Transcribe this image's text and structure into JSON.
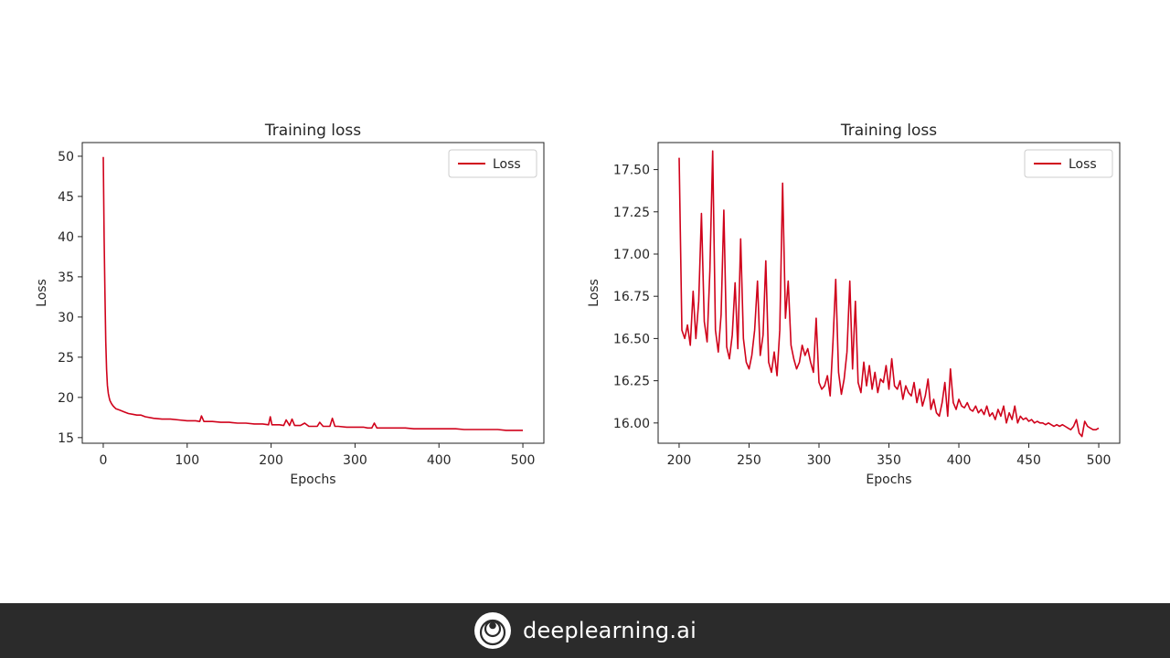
{
  "chart_data": [
    {
      "type": "line",
      "title": "Training loss",
      "xlabel": "Epochs",
      "ylabel": "Loss",
      "xlim": [
        -25,
        525
      ],
      "ylim": [
        14.3,
        51.7
      ],
      "xticks": [
        0,
        100,
        200,
        300,
        400,
        500
      ],
      "yticks": [
        15,
        20,
        25,
        30,
        35,
        40,
        45,
        50
      ],
      "grid": false,
      "legend": {
        "position": "top-right",
        "entries": [
          "Loss"
        ]
      },
      "color": "#d0021b",
      "series": [
        {
          "name": "Loss",
          "x": [
            0,
            1,
            2,
            3,
            4,
            5,
            6,
            7,
            8,
            10,
            12,
            15,
            20,
            25,
            30,
            35,
            40,
            45,
            50,
            60,
            70,
            80,
            90,
            100,
            110,
            115,
            117,
            120,
            130,
            140,
            150,
            160,
            170,
            180,
            190,
            197,
            199,
            201,
            205,
            210,
            215,
            218,
            222,
            225,
            228,
            235,
            240,
            245,
            250,
            255,
            258,
            262,
            265,
            270,
            273,
            276,
            280,
            290,
            300,
            305,
            310,
            315,
            320,
            323,
            326,
            330,
            340,
            350,
            360,
            370,
            380,
            390,
            400,
            410,
            420,
            430,
            440,
            450,
            460,
            470,
            480,
            490,
            500
          ],
          "values": [
            49.9,
            40.0,
            33.0,
            27.0,
            23.5,
            21.5,
            20.5,
            20.0,
            19.6,
            19.2,
            18.9,
            18.6,
            18.4,
            18.2,
            18.0,
            17.9,
            17.8,
            17.8,
            17.6,
            17.4,
            17.3,
            17.3,
            17.2,
            17.1,
            17.1,
            17.0,
            17.7,
            17.0,
            17.0,
            16.9,
            16.9,
            16.8,
            16.8,
            16.7,
            16.7,
            16.6,
            17.6,
            16.6,
            16.6,
            16.6,
            16.5,
            17.2,
            16.5,
            17.3,
            16.5,
            16.5,
            16.8,
            16.4,
            16.4,
            16.4,
            16.9,
            16.4,
            16.4,
            16.4,
            17.4,
            16.4,
            16.4,
            16.3,
            16.3,
            16.3,
            16.3,
            16.2,
            16.2,
            16.8,
            16.2,
            16.2,
            16.2,
            16.2,
            16.2,
            16.1,
            16.1,
            16.1,
            16.1,
            16.1,
            16.1,
            16.0,
            16.0,
            16.0,
            16.0,
            16.0,
            15.9,
            15.9,
            15.9
          ]
        }
      ]
    },
    {
      "type": "line",
      "title": "Training loss",
      "xlabel": "Epochs",
      "ylabel": "Loss",
      "xlim": [
        185,
        515
      ],
      "ylim": [
        15.88,
        17.66
      ],
      "xticks": [
        200,
        250,
        300,
        350,
        400,
        450,
        500
      ],
      "yticks": [
        16.0,
        16.25,
        16.5,
        16.75,
        17.0,
        17.25,
        17.5
      ],
      "grid": false,
      "legend": {
        "position": "top-right",
        "entries": [
          "Loss"
        ]
      },
      "color": "#d0021b",
      "series": [
        {
          "name": "Loss",
          "x": [
            200,
            202,
            204,
            206,
            208,
            210,
            212,
            214,
            216,
            218,
            220,
            222,
            224,
            226,
            228,
            230,
            232,
            234,
            236,
            238,
            240,
            242,
            244,
            246,
            248,
            250,
            252,
            254,
            256,
            258,
            260,
            262,
            264,
            266,
            268,
            270,
            272,
            274,
            276,
            278,
            280,
            282,
            284,
            286,
            288,
            290,
            292,
            294,
            296,
            298,
            300,
            302,
            304,
            306,
            308,
            310,
            312,
            314,
            316,
            318,
            320,
            322,
            324,
            326,
            328,
            330,
            332,
            334,
            336,
            338,
            340,
            342,
            344,
            346,
            348,
            350,
            352,
            354,
            356,
            358,
            360,
            362,
            364,
            366,
            368,
            370,
            372,
            374,
            376,
            378,
            380,
            382,
            384,
            386,
            388,
            390,
            392,
            394,
            396,
            398,
            400,
            402,
            404,
            406,
            408,
            410,
            412,
            414,
            416,
            418,
            420,
            422,
            424,
            426,
            428,
            430,
            432,
            434,
            436,
            438,
            440,
            442,
            444,
            446,
            448,
            450,
            452,
            454,
            456,
            458,
            460,
            462,
            464,
            466,
            468,
            470,
            472,
            474,
            476,
            478,
            480,
            482,
            484,
            486,
            488,
            490,
            492,
            494,
            496,
            498,
            500
          ],
          "values": [
            17.57,
            16.55,
            16.5,
            16.58,
            16.46,
            16.78,
            16.5,
            16.72,
            17.24,
            16.6,
            16.48,
            16.9,
            17.61,
            16.55,
            16.42,
            16.64,
            17.26,
            16.45,
            16.38,
            16.52,
            16.83,
            16.44,
            17.09,
            16.5,
            16.36,
            16.32,
            16.4,
            16.55,
            16.84,
            16.4,
            16.52,
            16.96,
            16.36,
            16.3,
            16.42,
            16.28,
            16.55,
            17.42,
            16.62,
            16.84,
            16.46,
            16.38,
            16.32,
            16.36,
            16.46,
            16.4,
            16.44,
            16.36,
            16.3,
            16.62,
            16.24,
            16.2,
            16.22,
            16.28,
            16.16,
            16.48,
            16.85,
            16.3,
            16.17,
            16.26,
            16.42,
            16.84,
            16.32,
            16.72,
            16.24,
            16.18,
            16.36,
            16.22,
            16.34,
            16.2,
            16.3,
            16.18,
            16.26,
            16.24,
            16.34,
            16.2,
            16.38,
            16.22,
            16.2,
            16.25,
            16.14,
            16.22,
            16.18,
            16.16,
            16.24,
            16.12,
            16.2,
            16.1,
            16.16,
            16.26,
            16.08,
            16.14,
            16.06,
            16.04,
            16.12,
            16.24,
            16.04,
            16.32,
            16.12,
            16.08,
            16.14,
            16.1,
            16.09,
            16.12,
            16.08,
            16.07,
            16.1,
            16.06,
            16.08,
            16.05,
            16.1,
            16.04,
            16.06,
            16.02,
            16.08,
            16.04,
            16.1,
            16.0,
            16.06,
            16.02,
            16.1,
            16.0,
            16.04,
            16.02,
            16.03,
            16.01,
            16.02,
            16.0,
            16.01,
            16.0,
            16.0,
            15.99,
            16.0,
            15.99,
            15.98,
            15.99,
            15.98,
            15.99,
            15.98,
            15.97,
            15.96,
            15.98,
            16.02,
            15.94,
            15.92,
            16.01,
            15.98,
            15.97,
            15.96,
            15.96,
            15.97
          ]
        }
      ]
    }
  ],
  "footer": {
    "brand_text": "deeplearning.ai",
    "logo_icon": "deeplearning-logo-icon",
    "background": "#2b2b2b"
  }
}
